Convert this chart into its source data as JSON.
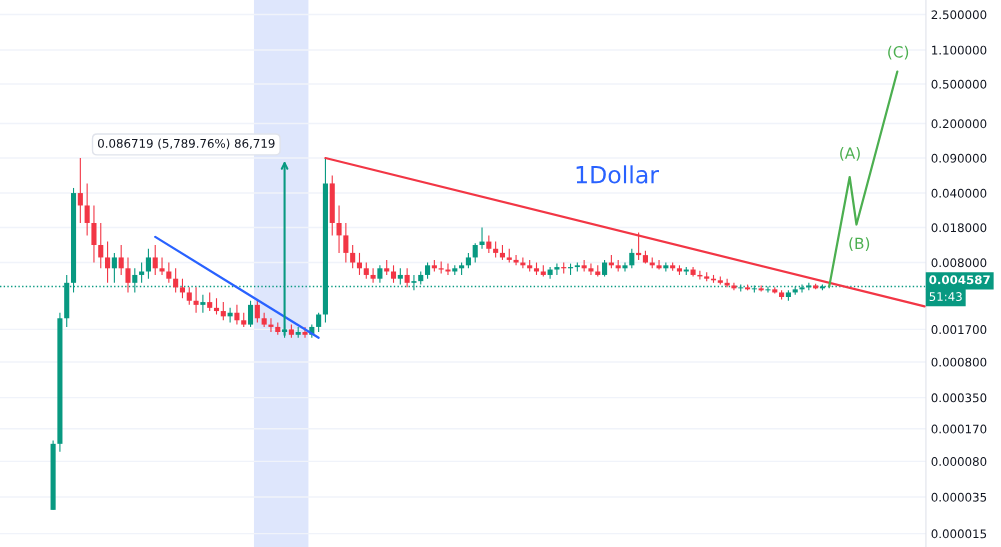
{
  "chart_data": {
    "type": "candlestick",
    "log": "y",
    "grid": "y",
    "tick_labels": "y",
    "ylim": [
      1.1e-05,
      3.5
    ],
    "yticks": [
      {
        "value": 2.5,
        "label": "2.500000"
      },
      {
        "value": 1.1,
        "label": "1.100000"
      },
      {
        "value": 0.5,
        "label": "0.500000"
      },
      {
        "value": 0.2,
        "label": "0.200000"
      },
      {
        "value": 0.09,
        "label": "0.090000"
      },
      {
        "value": 0.04,
        "label": "0.040000"
      },
      {
        "value": 0.018,
        "label": "0.018000"
      },
      {
        "value": 0.008,
        "label": "0.008000"
      },
      {
        "value": 0.0017,
        "label": "0.001700"
      },
      {
        "value": 0.0008,
        "label": "0.000800"
      },
      {
        "value": 0.00035,
        "label": "0.000350"
      },
      {
        "value": 0.00017,
        "label": "0.000170"
      },
      {
        "value": 8e-05,
        "label": "0.000080"
      },
      {
        "value": 3.5e-05,
        "label": "0.000035"
      },
      {
        "value": 1.5e-05,
        "label": "0.000015"
      }
    ],
    "colors": [
      "#089981",
      "#089981",
      "#089981",
      "#089981",
      "#f23645",
      "#f23645",
      "#f23645",
      "#f23645",
      "#f23645",
      "#089981",
      "#f23645",
      "#f23645",
      "#089981",
      "#089981",
      "#089981",
      "#f23645",
      "#f23645",
      "#f23645",
      "#f23645",
      "#f23645",
      "#f23645",
      "#f23645",
      "#089981",
      "#f23645",
      "#f23645",
      "#f23645",
      "#089981",
      "#f23645",
      "#f23645",
      "#089981",
      "#f23645",
      "#f23645",
      "#f23645",
      "#f23645",
      "#089981",
      "#f23645",
      "#089981",
      "#f23645",
      "#089981",
      "#089981",
      "#089981",
      "#f23645",
      "#f23645",
      "#f23645",
      "#f23645",
      "#f23645",
      "#f23645",
      "#f23645",
      "#089981",
      "#f23645",
      "#f23645",
      "#089981",
      "#f23645",
      "#089981",
      "#089981",
      "#089981",
      "#f23645",
      "#f23645",
      "#f23645",
      "#089981",
      "#089981",
      "#089981",
      "#089981",
      "#089981",
      "#f23645",
      "#f23645",
      "#f23645",
      "#f23645",
      "#f23645",
      "#f23645",
      "#f23645",
      "#f23645",
      "#f23645",
      "#089981",
      "#089981",
      "#f23645",
      "#089981",
      "#089981",
      "#f23645",
      "#f23645",
      "#f23645",
      "#089981",
      "#f23645",
      "#f23645",
      "#089981",
      "#089981",
      "#f23645",
      "#f23645",
      "#f23645",
      "#f23645",
      "#089981",
      "#f23645",
      "#f23645",
      "#089981",
      "#f23645",
      "#f23645",
      "#f23645",
      "#f23645",
      "#f23645",
      "#f23645",
      "#f23645",
      "#089981",
      "#f23645",
      "#089981",
      "#f23645",
      "#089981",
      "#f23645",
      "#f23645",
      "#089981",
      "#089981",
      "#089981",
      "#089981",
      "#f23645",
      "#089981",
      "#089981",
      null,
      null,
      null,
      null,
      null,
      null,
      null,
      null,
      null,
      null,
      null,
      null,
      null,
      null
    ],
    "categories": [
      null,
      null,
      null,
      null,
      null,
      null,
      null,
      null,
      null,
      null,
      null,
      null,
      null,
      null,
      null,
      null,
      null,
      null,
      null,
      null,
      null,
      null,
      null,
      null,
      null,
      null,
      null,
      null,
      null,
      null,
      null,
      null,
      null,
      null,
      null,
      null,
      null,
      null,
      null,
      null,
      null,
      null,
      null,
      null,
      null,
      null,
      null,
      null,
      null,
      null,
      null,
      null,
      null,
      null,
      null,
      null,
      null,
      null,
      null,
      null,
      null,
      null,
      null,
      null,
      null,
      null,
      null,
      null,
      null,
      null,
      null,
      null,
      null,
      null,
      null,
      null,
      null,
      null,
      null,
      null,
      null,
      null,
      null,
      null,
      null,
      null,
      null,
      null,
      null,
      null,
      null,
      null,
      null,
      null,
      null,
      null,
      null,
      null,
      null,
      null,
      null,
      null,
      null,
      null,
      null,
      null,
      null,
      null,
      null,
      null,
      null,
      null,
      null,
      null,
      null,
      null,
      null,
      null,
      null,
      null,
      null,
      null,
      null,
      null,
      null,
      null,
      null,
      null,
      null
    ],
    "ohlc": [
      [
        2.6e-05,
        0.00013,
        2.6e-05,
        0.00012
      ],
      [
        0.00012,
        0.0025,
        0.0001,
        0.0022
      ],
      [
        0.0022,
        0.006,
        0.0018,
        0.005
      ],
      [
        0.005,
        0.045,
        0.004,
        0.04
      ],
      [
        0.04,
        0.09,
        0.02,
        0.03
      ],
      [
        0.03,
        0.05,
        0.015,
        0.02
      ],
      [
        0.02,
        0.03,
        0.008,
        0.012
      ],
      [
        0.012,
        0.02,
        0.007,
        0.009
      ],
      [
        0.009,
        0.013,
        0.005,
        0.007
      ],
      [
        0.007,
        0.01,
        0.005,
        0.009
      ],
      [
        0.009,
        0.012,
        0.006,
        0.007
      ],
      [
        0.007,
        0.009,
        0.004,
        0.005
      ],
      [
        0.005,
        0.007,
        0.004,
        0.006
      ],
      [
        0.006,
        0.008,
        0.005,
        0.0065
      ],
      [
        0.0065,
        0.011,
        0.0055,
        0.009
      ],
      [
        0.009,
        0.012,
        0.006,
        0.007
      ],
      [
        0.007,
        0.009,
        0.006,
        0.0065
      ],
      [
        0.0065,
        0.008,
        0.005,
        0.0055
      ],
      [
        0.0055,
        0.007,
        0.004,
        0.0045
      ],
      [
        0.0045,
        0.0055,
        0.0035,
        0.004
      ],
      [
        0.004,
        0.0045,
        0.003,
        0.0033
      ],
      [
        0.0033,
        0.0045,
        0.0025,
        0.003
      ],
      [
        0.003,
        0.0038,
        0.0025,
        0.0032
      ],
      [
        0.0032,
        0.004,
        0.0026,
        0.0028
      ],
      [
        0.0028,
        0.0035,
        0.0024,
        0.0026
      ],
      [
        0.0026,
        0.0032,
        0.0021,
        0.0023
      ],
      [
        0.0023,
        0.0028,
        0.002,
        0.0025
      ],
      [
        0.0025,
        0.003,
        0.0019,
        0.0021
      ],
      [
        0.0021,
        0.0025,
        0.0018,
        0.0019
      ],
      [
        0.0019,
        0.0033,
        0.0018,
        0.003
      ],
      [
        0.003,
        0.0033,
        0.002,
        0.0022
      ],
      [
        0.0022,
        0.0025,
        0.0018,
        0.0019
      ],
      [
        0.0019,
        0.0022,
        0.0016,
        0.0018
      ],
      [
        0.0018,
        0.002,
        0.0015,
        0.0016
      ],
      [
        0.0016,
        0.0019,
        0.0014,
        0.0017
      ],
      [
        0.0017,
        0.0019,
        0.0014,
        0.0015
      ],
      [
        0.0015,
        0.0018,
        0.0014,
        0.0016
      ],
      [
        0.0016,
        0.0018,
        0.0014,
        0.0015
      ],
      [
        0.0015,
        0.0019,
        0.0014,
        0.0018
      ],
      [
        0.0018,
        0.0025,
        0.0016,
        0.0024
      ],
      [
        0.0024,
        0.09,
        0.002,
        0.05
      ],
      [
        0.05,
        0.06,
        0.015,
        0.02
      ],
      [
        0.02,
        0.03,
        0.01,
        0.015
      ],
      [
        0.015,
        0.02,
        0.008,
        0.01
      ],
      [
        0.01,
        0.012,
        0.007,
        0.008
      ],
      [
        0.008,
        0.01,
        0.006,
        0.007
      ],
      [
        0.007,
        0.008,
        0.0055,
        0.006
      ],
      [
        0.006,
        0.007,
        0.005,
        0.0055
      ],
      [
        0.0055,
        0.0075,
        0.005,
        0.007
      ],
      [
        0.007,
        0.0085,
        0.006,
        0.0065
      ],
      [
        0.0065,
        0.0075,
        0.005,
        0.0055
      ],
      [
        0.0055,
        0.007,
        0.0048,
        0.006
      ],
      [
        0.006,
        0.007,
        0.0045,
        0.005
      ],
      [
        0.005,
        0.006,
        0.0042,
        0.0052
      ],
      [
        0.0052,
        0.0065,
        0.0048,
        0.006
      ],
      [
        0.006,
        0.008,
        0.0055,
        0.0075
      ],
      [
        0.0075,
        0.0085,
        0.0065,
        0.007
      ],
      [
        0.007,
        0.0082,
        0.0062,
        0.0068
      ],
      [
        0.0068,
        0.0078,
        0.006,
        0.0065
      ],
      [
        0.0065,
        0.0075,
        0.006,
        0.007
      ],
      [
        0.007,
        0.008,
        0.006,
        0.0075
      ],
      [
        0.0075,
        0.01,
        0.007,
        0.009
      ],
      [
        0.009,
        0.0125,
        0.008,
        0.012
      ],
      [
        0.012,
        0.018,
        0.011,
        0.013
      ],
      [
        0.013,
        0.015,
        0.01,
        0.011
      ],
      [
        0.011,
        0.013,
        0.009,
        0.01
      ],
      [
        0.01,
        0.012,
        0.0085,
        0.009
      ],
      [
        0.009,
        0.011,
        0.008,
        0.0085
      ],
      [
        0.0085,
        0.0095,
        0.0075,
        0.008
      ],
      [
        0.008,
        0.009,
        0.007,
        0.0075
      ],
      [
        0.0075,
        0.0085,
        0.0065,
        0.007
      ],
      [
        0.007,
        0.008,
        0.006,
        0.0065
      ],
      [
        0.0065,
        0.0075,
        0.0058,
        0.006
      ],
      [
        0.006,
        0.0072,
        0.0055,
        0.0068
      ],
      [
        0.0068,
        0.0078,
        0.006,
        0.0072
      ],
      [
        0.0072,
        0.008,
        0.0062,
        0.007
      ],
      [
        0.007,
        0.0078,
        0.006,
        0.0072
      ],
      [
        0.0072,
        0.008,
        0.0065,
        0.0075
      ],
      [
        0.0075,
        0.0085,
        0.0065,
        0.007
      ],
      [
        0.007,
        0.0078,
        0.006,
        0.0065
      ],
      [
        0.0065,
        0.0075,
        0.0058,
        0.006
      ],
      [
        0.006,
        0.0085,
        0.0058,
        0.008
      ],
      [
        0.008,
        0.0095,
        0.007,
        0.0075
      ],
      [
        0.0075,
        0.0085,
        0.0065,
        0.007
      ],
      [
        0.007,
        0.008,
        0.0065,
        0.0075
      ],
      [
        0.0075,
        0.011,
        0.007,
        0.01
      ],
      [
        0.01,
        0.016,
        0.0085,
        0.0095
      ],
      [
        0.0095,
        0.0105,
        0.0078,
        0.008
      ],
      [
        0.008,
        0.009,
        0.007,
        0.0075
      ],
      [
        0.0075,
        0.0085,
        0.0068,
        0.007
      ],
      [
        0.007,
        0.008,
        0.0065,
        0.0075
      ],
      [
        0.0075,
        0.008,
        0.0066,
        0.007
      ],
      [
        0.007,
        0.0075,
        0.006,
        0.0065
      ],
      [
        0.0065,
        0.0072,
        0.006,
        0.0068
      ],
      [
        0.0068,
        0.0072,
        0.0058,
        0.006
      ],
      [
        0.006,
        0.0066,
        0.0054,
        0.0058
      ],
      [
        0.0058,
        0.0064,
        0.0052,
        0.0055
      ],
      [
        0.0055,
        0.006,
        0.005,
        0.0053
      ],
      [
        0.0053,
        0.0058,
        0.0048,
        0.005
      ],
      [
        0.005,
        0.0055,
        0.0045,
        0.0047
      ],
      [
        0.0047,
        0.005,
        0.0042,
        0.0044
      ],
      [
        0.0044,
        0.0048,
        0.0041,
        0.0045
      ],
      [
        0.0045,
        0.0048,
        0.0042,
        0.0043
      ],
      [
        0.0043,
        0.0047,
        0.004,
        0.0044
      ],
      [
        0.0044,
        0.0047,
        0.0041,
        0.0042
      ],
      [
        0.0042,
        0.0046,
        0.004,
        0.0043
      ],
      [
        0.0043,
        0.0045,
        0.0039,
        0.004
      ],
      [
        0.004,
        0.0042,
        0.0034,
        0.0036
      ],
      [
        0.0036,
        0.0042,
        0.0033,
        0.004
      ],
      [
        0.004,
        0.0046,
        0.0038,
        0.0043
      ],
      [
        0.0043,
        0.0048,
        0.004,
        0.0045
      ],
      [
        0.0045,
        0.005,
        0.0042,
        0.0047
      ],
      [
        0.0047,
        0.0049,
        0.0043,
        0.0044
      ],
      [
        0.0044,
        0.0048,
        0.0042,
        0.0046
      ],
      [
        0.0046,
        0.0048,
        0.0044,
        0.004587
      ],
      null,
      null,
      null,
      null,
      null,
      null,
      null,
      null,
      null,
      null,
      null,
      null,
      null,
      null
    ],
    "series": [
      {
        "type": "line",
        "color": "#f23645",
        "values": [
          null,
          null,
          null,
          null,
          null,
          null,
          null,
          null,
          null,
          null,
          null,
          null,
          null,
          null,
          null,
          null,
          null,
          null,
          null,
          null,
          null,
          null,
          null,
          null,
          null,
          null,
          null,
          null,
          null,
          null,
          null,
          null,
          null,
          null,
          null,
          null,
          null,
          null,
          null,
          null,
          0.09,
          null,
          null,
          null,
          null,
          null,
          null,
          null,
          null,
          null,
          null,
          null,
          null,
          null,
          null,
          null,
          null,
          null,
          null,
          null,
          null,
          null,
          null,
          null,
          null,
          null,
          null,
          null,
          null,
          null,
          null,
          null,
          null,
          null,
          null,
          null,
          null,
          null,
          null,
          null,
          null,
          null,
          null,
          null,
          null,
          null,
          null,
          null,
          null,
          null,
          null,
          null,
          null,
          null,
          null,
          null,
          null,
          null,
          null,
          null,
          null,
          null,
          null,
          null,
          null,
          null,
          null,
          null,
          null,
          null,
          null,
          null,
          null,
          null,
          null,
          null,
          null,
          null,
          null,
          null,
          null,
          null,
          null,
          null,
          null,
          null,
          null,
          null,
          0.0029
        ]
      },
      {
        "type": "line",
        "color": "#2962ff",
        "values": [
          null,
          null,
          null,
          null,
          null,
          null,
          null,
          null,
          null,
          null,
          null,
          null,
          null,
          null,
          null,
          0.0145,
          null,
          null,
          null,
          null,
          null,
          null,
          null,
          null,
          null,
          null,
          null,
          null,
          null,
          null,
          null,
          null,
          null,
          null,
          null,
          null,
          null,
          null,
          null,
          0.0014,
          null,
          null,
          null,
          null,
          null,
          null,
          null,
          null,
          null,
          null,
          null,
          null,
          null,
          null,
          null,
          null,
          null,
          null,
          null,
          null,
          null,
          null,
          null,
          null,
          null,
          null,
          null,
          null,
          null,
          null,
          null,
          null,
          null,
          null,
          null,
          null,
          null,
          null,
          null,
          null,
          null,
          null,
          null,
          null,
          null,
          null,
          null,
          null,
          null,
          null,
          null,
          null,
          null,
          null,
          null,
          null,
          null,
          null,
          null,
          null,
          null,
          null,
          null,
          null,
          null,
          null,
          null,
          null,
          null,
          null,
          null,
          null,
          null,
          null,
          null,
          null,
          null,
          null,
          null,
          null,
          null,
          null,
          null,
          null,
          null,
          null,
          null,
          null,
          null
        ]
      },
      {
        "type": "line",
        "color": "#4caf50",
        "values": [
          null,
          null,
          null,
          null,
          null,
          null,
          null,
          null,
          null,
          null,
          null,
          null,
          null,
          null,
          null,
          null,
          null,
          null,
          null,
          null,
          null,
          null,
          null,
          null,
          null,
          null,
          null,
          null,
          null,
          null,
          null,
          null,
          null,
          null,
          null,
          null,
          null,
          null,
          null,
          null,
          null,
          null,
          null,
          null,
          null,
          null,
          null,
          null,
          null,
          null,
          null,
          null,
          null,
          null,
          null,
          null,
          null,
          null,
          null,
          null,
          null,
          null,
          null,
          null,
          null,
          null,
          null,
          null,
          null,
          null,
          null,
          null,
          null,
          null,
          null,
          null,
          null,
          null,
          null,
          null,
          null,
          null,
          null,
          null,
          null,
          null,
          null,
          null,
          null,
          null,
          null,
          null,
          null,
          null,
          null,
          null,
          null,
          null,
          null,
          null,
          null,
          null,
          null,
          null,
          null,
          null,
          null,
          null,
          null,
          null,
          null,
          null,
          null,
          null,
          0.0046,
          null,
          null,
          0.058,
          0.0193,
          null,
          null,
          null,
          null,
          null,
          0.667,
          null,
          null,
          null,
          null
        ]
      }
    ],
    "ref_lines": [
      {
        "axis": "y",
        "value": 0.004587,
        "label": "0.004587",
        "color": "#089981",
        "line_style": "dotted"
      }
    ],
    "annotations": [
      "0.086719 (5,789.76%) 86,719",
      "1Dollar",
      "(A)",
      "(B)",
      "(C)",
      "51:43"
    ]
  }
}
